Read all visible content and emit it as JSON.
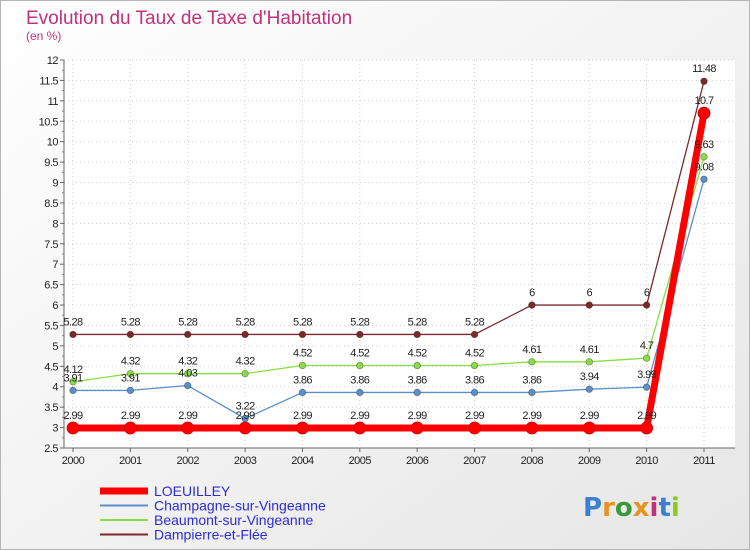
{
  "chart_data": {
    "type": "line",
    "title": "Evolution du Taux de Taxe d'Habitation",
    "subtitle": "(en %)",
    "x": [
      "2000",
      "2001",
      "2002",
      "2003",
      "2004",
      "2005",
      "2006",
      "2007",
      "2008",
      "2009",
      "2010",
      "2011"
    ],
    "ylim": [
      2.5,
      12
    ],
    "ytick_step": 0.5,
    "yticks": [
      "2.5",
      "3",
      "3.5",
      "4",
      "4.5",
      "5",
      "5.5",
      "6",
      "6.5",
      "7",
      "7.5",
      "8",
      "8.5",
      "9",
      "9.5",
      "10",
      "10.5",
      "11",
      "11.5",
      "12"
    ],
    "grid": true,
    "legend_position": "bottom-left",
    "series": [
      {
        "name": "LOEUILLEY",
        "color": "#ff0000",
        "values": [
          2.99,
          2.99,
          2.99,
          2.99,
          2.99,
          2.99,
          2.99,
          2.99,
          2.99,
          2.99,
          2.99,
          10.7
        ],
        "labels": [
          "2.99",
          "2.99",
          "2.99",
          "2.99",
          "2.99",
          "2.99",
          "2.99",
          "2.99",
          "2.99",
          "2.99",
          "2.99",
          "10.7"
        ]
      },
      {
        "name": "Champagne-sur-Vingeanne",
        "color": "#5b8fc9",
        "values": [
          3.91,
          3.91,
          4.03,
          3.22,
          3.86,
          3.86,
          3.86,
          3.86,
          3.86,
          3.94,
          3.99,
          9.08
        ],
        "labels": [
          "3.91",
          "3.91",
          "4.03",
          "3.22",
          "3.86",
          "3.86",
          "3.86",
          "3.86",
          "3.86",
          "3.94",
          "3.99",
          "9.08"
        ]
      },
      {
        "name": "Beaumont-sur-Vingeanne",
        "color": "#88dd44",
        "values": [
          4.12,
          4.32,
          4.32,
          4.32,
          4.52,
          4.52,
          4.52,
          4.52,
          4.61,
          4.61,
          4.7,
          9.63
        ],
        "labels": [
          "4.12",
          "4.32",
          "4.32",
          "4.32",
          "4.52",
          "4.52",
          "4.52",
          "4.52",
          "4.61",
          "4.61",
          "4.7",
          "9.63"
        ]
      },
      {
        "name": "Dampierre-et-Flée",
        "color": "#7a2a2a",
        "values": [
          5.28,
          5.28,
          5.28,
          5.28,
          5.28,
          5.28,
          5.28,
          5.28,
          6,
          6,
          6,
          11.48
        ],
        "labels": [
          "5.28",
          "5.28",
          "5.28",
          "5.28",
          "5.28",
          "5.28",
          "5.28",
          "5.28",
          "6",
          "6",
          "6",
          "11.48"
        ]
      }
    ]
  },
  "logo": {
    "text": "Proxiti",
    "colors": [
      "#3a7fd0",
      "#e8931e",
      "#3a9a3a",
      "#e8931e",
      "#c0317a",
      "#3a7fd0",
      "#88cc22"
    ]
  }
}
